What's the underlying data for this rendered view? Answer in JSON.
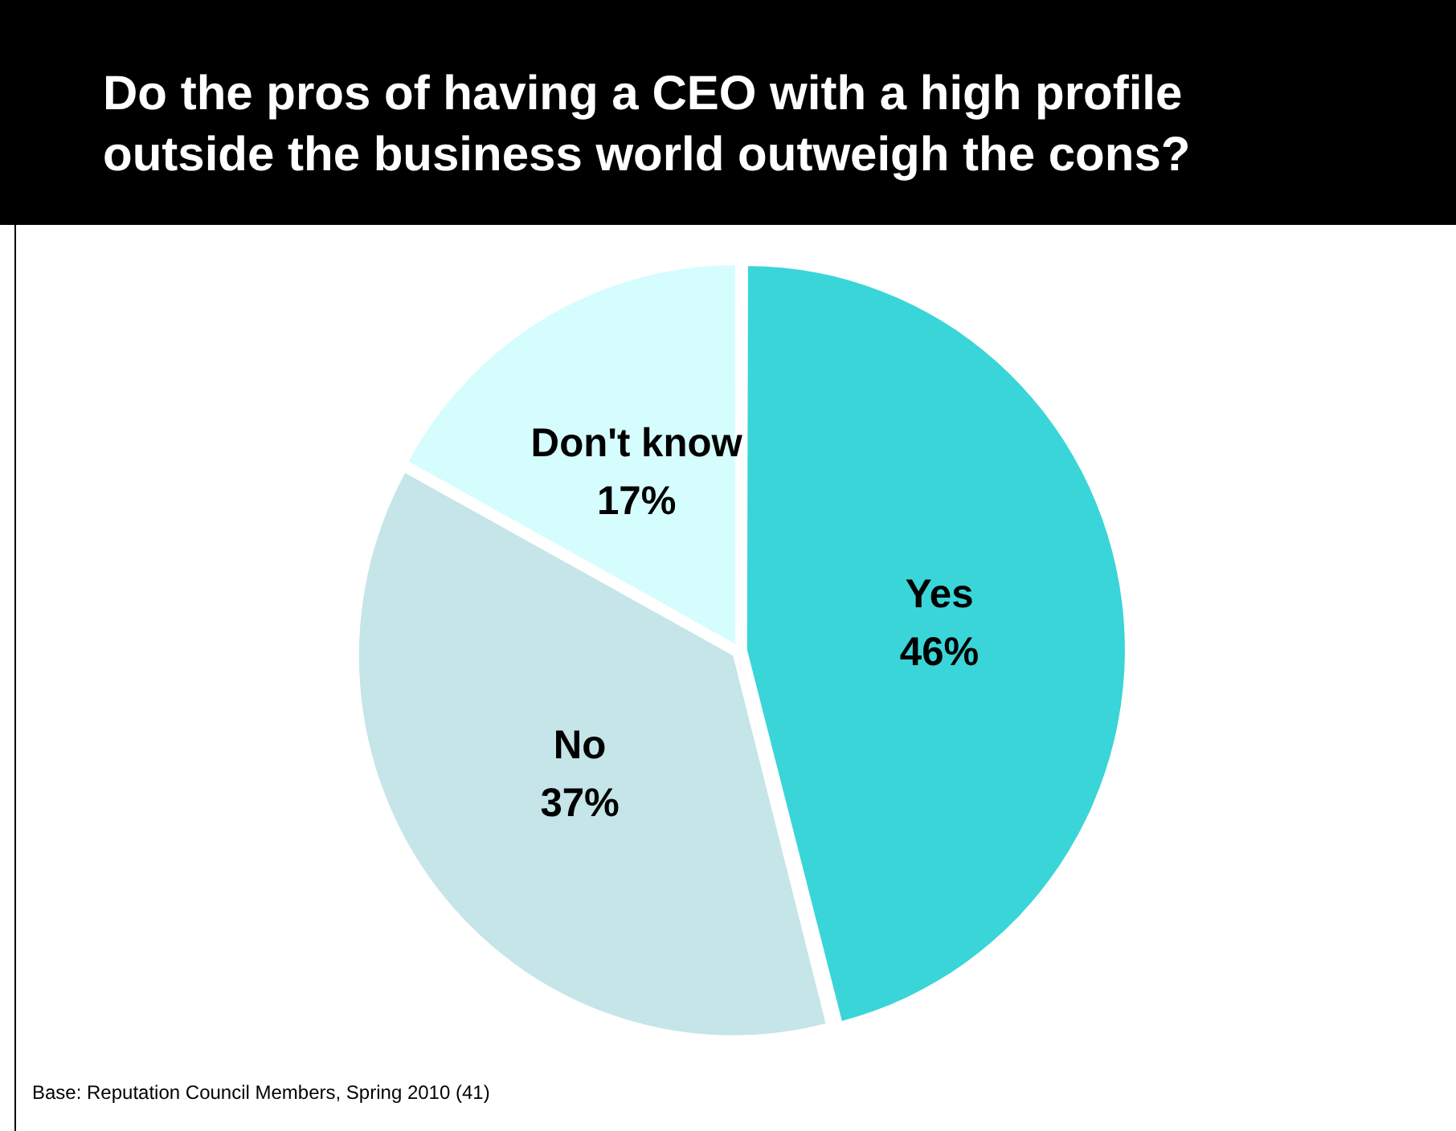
{
  "chart_data": {
    "type": "pie",
    "title": "Do the pros of having a CEO with a high profile outside the business world outweigh the cons?",
    "categories": [
      "Yes",
      "No",
      "Don't know"
    ],
    "values": [
      46,
      37,
      17
    ],
    "colors": [
      "#3ad5d8",
      "#c5e5e8",
      "#d5fdfd"
    ],
    "value_labels": [
      "46%",
      "37%",
      "17%"
    ],
    "legend": false,
    "annotations": [
      "Base: Reputation Council Members, Spring 2010 (41)"
    ]
  }
}
